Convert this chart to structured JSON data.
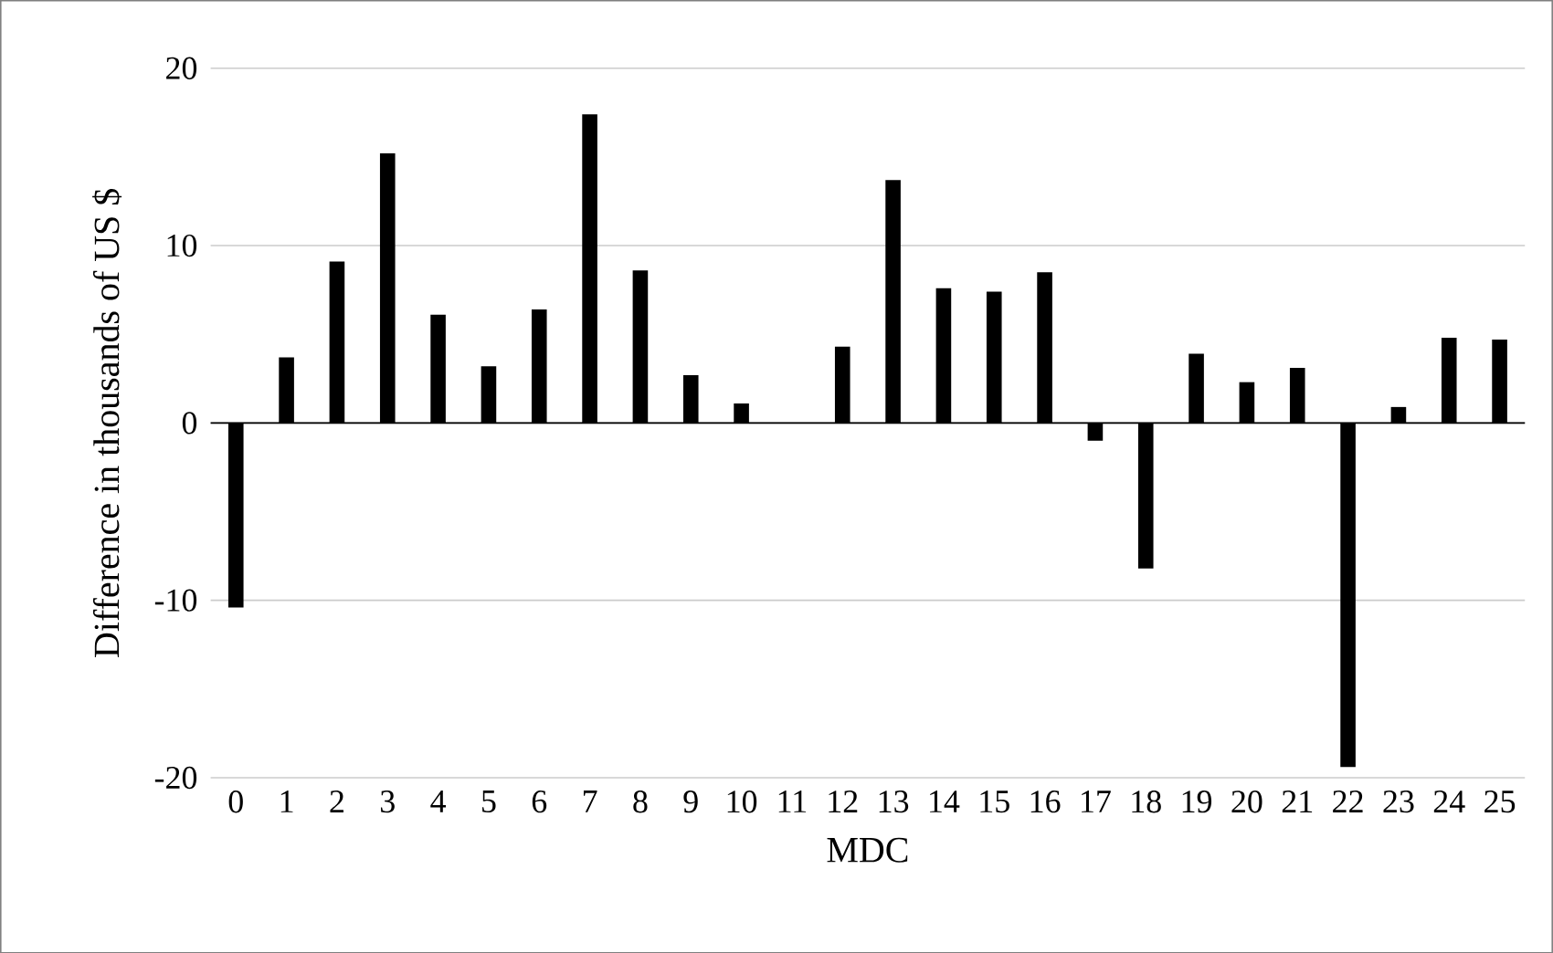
{
  "chart_data": {
    "type": "bar",
    "xlabel": "MDC",
    "ylabel": "Difference in thousands of US $",
    "categories": [
      "0",
      "1",
      "2",
      "3",
      "4",
      "5",
      "6",
      "7",
      "8",
      "9",
      "10",
      "11",
      "12",
      "13",
      "14",
      "15",
      "16",
      "17",
      "18",
      "19",
      "20",
      "21",
      "22",
      "23",
      "24",
      "25"
    ],
    "values": [
      -10.4,
      3.7,
      9.1,
      15.2,
      6.1,
      3.2,
      6.4,
      17.4,
      8.6,
      2.7,
      1.1,
      0,
      4.3,
      13.7,
      7.6,
      7.4,
      8.5,
      -1.0,
      -8.2,
      3.9,
      2.3,
      3.1,
      -19.4,
      0.9,
      4.8,
      4.7
    ],
    "color": "#000000",
    "ylim": [
      -20,
      20
    ],
    "yticks": [
      -20,
      -10,
      0,
      10,
      20
    ],
    "grid": "y"
  }
}
